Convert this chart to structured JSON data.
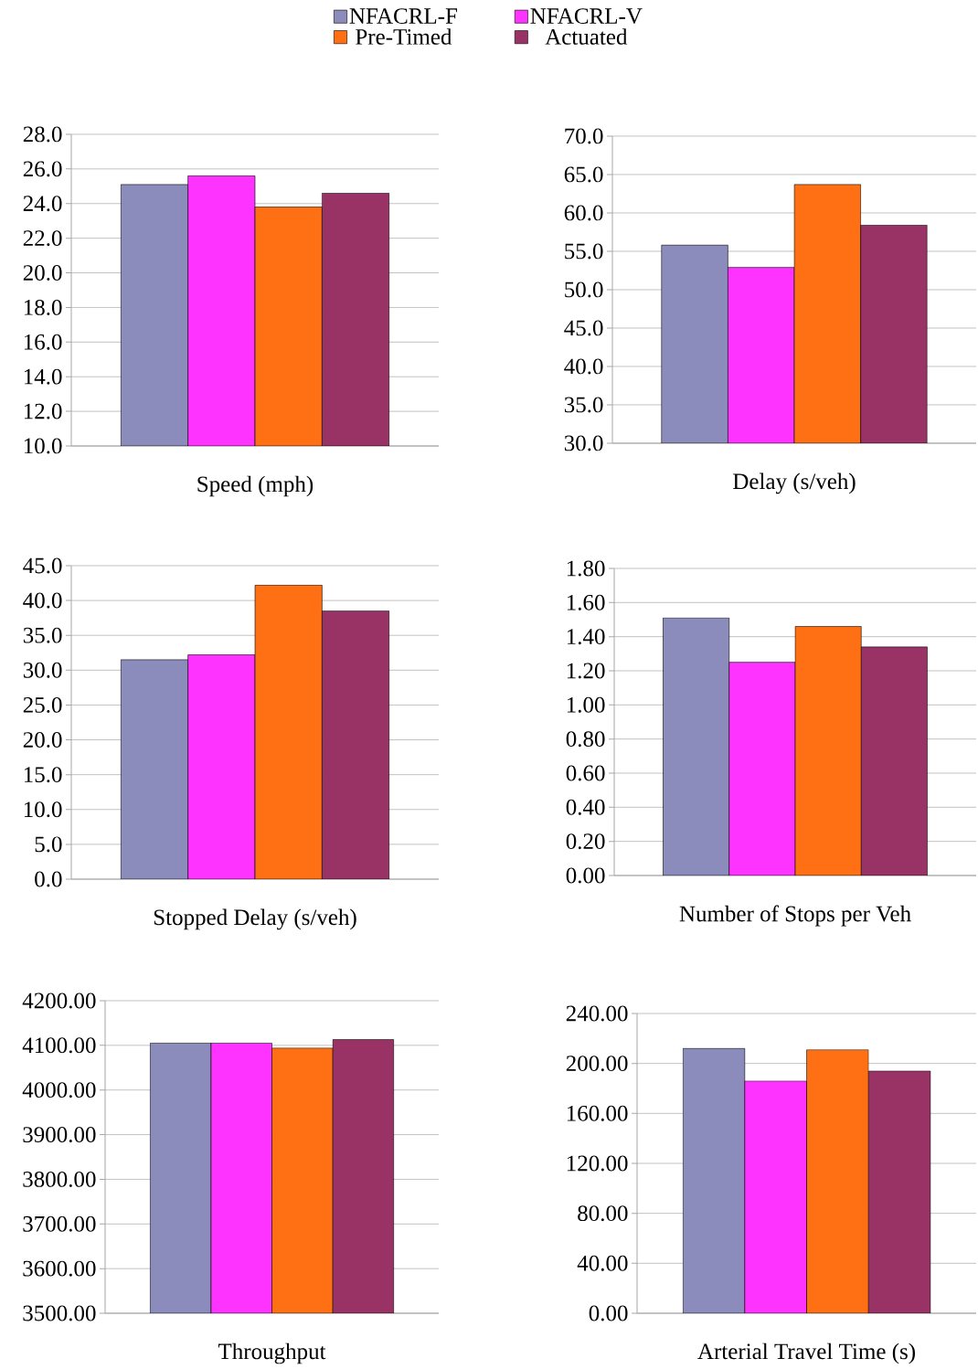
{
  "chart_data": [
    {
      "type": "bar",
      "xlabel": "Speed (mph)",
      "categories": [
        null
      ],
      "legend": "top",
      "grid": "y",
      "series": [
        {
          "name": "NFACRL-F",
          "color": "#8c8cbc",
          "values": [
            25.1
          ]
        },
        {
          "name": "NFACRL-V",
          "color": "#ff33ff",
          "values": [
            25.6
          ]
        },
        {
          "name": "Pre-Timed",
          "color": "#ff7014",
          "values": [
            23.8
          ]
        },
        {
          "name": "Actuated",
          "color": "#993366",
          "values": [
            24.6
          ]
        }
      ],
      "ylim": [
        10,
        28
      ],
      "yticks": [
        {
          "value": 10,
          "label": "10.0"
        },
        {
          "value": 12,
          "label": "12.0"
        },
        {
          "value": 14,
          "label": "14.0"
        },
        {
          "value": 16,
          "label": "16.0"
        },
        {
          "value": 18,
          "label": "18.0"
        },
        {
          "value": 20,
          "label": "20.0"
        },
        {
          "value": 22,
          "label": "22.0"
        },
        {
          "value": 24,
          "label": "24.0"
        },
        {
          "value": 26,
          "label": "26.0"
        },
        {
          "value": 28,
          "label": "28.0"
        }
      ]
    },
    {
      "type": "bar",
      "xlabel": "Delay (s/veh)",
      "categories": [
        null
      ],
      "grid": "y",
      "series": [
        {
          "color": "#8c8cbc",
          "values": [
            55.8
          ]
        },
        {
          "color": "#ff33ff",
          "values": [
            52.9
          ]
        },
        {
          "color": "#ff7014",
          "values": [
            63.7
          ]
        },
        {
          "color": "#993366",
          "values": [
            58.4
          ]
        }
      ],
      "ylim": [
        30,
        70
      ],
      "yticks": [
        {
          "value": 30,
          "label": "30.0"
        },
        {
          "value": 35,
          "label": "35.0"
        },
        {
          "value": 40,
          "label": "40.0"
        },
        {
          "value": 45,
          "label": "45.0"
        },
        {
          "value": 50,
          "label": "50.0"
        },
        {
          "value": 55,
          "label": "55.0"
        },
        {
          "value": 60,
          "label": "60.0"
        },
        {
          "value": 65,
          "label": "65.0"
        },
        {
          "value": 70,
          "label": "70.0"
        }
      ]
    },
    {
      "type": "bar",
      "xlabel": "Stopped Delay (s/veh)",
      "categories": [
        null
      ],
      "grid": "y",
      "series": [
        {
          "color": "#8c8cbc",
          "values": [
            31.5
          ]
        },
        {
          "color": "#ff33ff",
          "values": [
            32.2
          ]
        },
        {
          "color": "#ff7014",
          "values": [
            42.2
          ]
        },
        {
          "color": "#993366",
          "values": [
            38.5
          ]
        }
      ],
      "ylim": [
        0,
        45
      ],
      "yticks": [
        {
          "value": 0,
          "label": "0.0"
        },
        {
          "value": 5,
          "label": "5.0"
        },
        {
          "value": 10,
          "label": "10.0"
        },
        {
          "value": 15,
          "label": "15.0"
        },
        {
          "value": 20,
          "label": "20.0"
        },
        {
          "value": 25,
          "label": "25.0"
        },
        {
          "value": 30,
          "label": "30.0"
        },
        {
          "value": 35,
          "label": "35.0"
        },
        {
          "value": 40,
          "label": "40.0"
        },
        {
          "value": 45,
          "label": "45.0"
        }
      ]
    },
    {
      "type": "bar",
      "xlabel": "Number of Stops per Veh",
      "categories": [
        null
      ],
      "grid": "y",
      "series": [
        {
          "color": "#8c8cbc",
          "values": [
            1.51
          ]
        },
        {
          "color": "#ff33ff",
          "values": [
            1.25
          ]
        },
        {
          "color": "#ff7014",
          "values": [
            1.46
          ]
        },
        {
          "color": "#993366",
          "values": [
            1.34
          ]
        }
      ],
      "ylim": [
        0,
        1.8
      ],
      "yticks": [
        {
          "value": 0,
          "label": "0.00"
        },
        {
          "value": 0.2,
          "label": "0.20"
        },
        {
          "value": 0.4,
          "label": "0.40"
        },
        {
          "value": 0.6,
          "label": "0.60"
        },
        {
          "value": 0.8,
          "label": "0.80"
        },
        {
          "value": 1.0,
          "label": "1.00"
        },
        {
          "value": 1.2,
          "label": "1.20"
        },
        {
          "value": 1.4,
          "label": "1.40"
        },
        {
          "value": 1.6,
          "label": "1.60"
        },
        {
          "value": 1.8,
          "label": "1.80"
        }
      ]
    },
    {
      "type": "bar",
      "xlabel": "Throughput",
      "categories": [
        null
      ],
      "grid": "y",
      "series": [
        {
          "color": "#8c8cbc",
          "values": [
            4105
          ]
        },
        {
          "color": "#ff33ff",
          "values": [
            4105
          ]
        },
        {
          "color": "#ff7014",
          "values": [
            4094
          ]
        },
        {
          "color": "#993366",
          "values": [
            4113
          ]
        }
      ],
      "ylim": [
        3500,
        4200
      ],
      "yticks": [
        {
          "value": 3500,
          "label": "3500.00"
        },
        {
          "value": 3600,
          "label": "3600.00"
        },
        {
          "value": 3700,
          "label": "3700.00"
        },
        {
          "value": 3800,
          "label": "3800.00"
        },
        {
          "value": 3900,
          "label": "3900.00"
        },
        {
          "value": 4000,
          "label": "4000.00"
        },
        {
          "value": 4100,
          "label": "4100.00"
        },
        {
          "value": 4200,
          "label": "4200.00"
        }
      ]
    },
    {
      "type": "bar",
      "xlabel": "Arterial Travel Time (s)",
      "categories": [
        null
      ],
      "grid": "y",
      "series": [
        {
          "color": "#8c8cbc",
          "values": [
            212
          ]
        },
        {
          "color": "#ff33ff",
          "values": [
            186
          ]
        },
        {
          "color": "#ff7014",
          "values": [
            211
          ]
        },
        {
          "color": "#993366",
          "values": [
            194
          ]
        }
      ],
      "ylim": [
        0,
        240
      ],
      "yticks": [
        {
          "value": 0,
          "label": "0.00"
        },
        {
          "value": 40,
          "label": "40.00"
        },
        {
          "value": 80,
          "label": "80.00"
        },
        {
          "value": 120,
          "label": "120.00"
        },
        {
          "value": 160,
          "label": "160.00"
        },
        {
          "value": 200,
          "label": "200.00"
        },
        {
          "value": 240,
          "label": "240.00"
        }
      ]
    }
  ]
}
